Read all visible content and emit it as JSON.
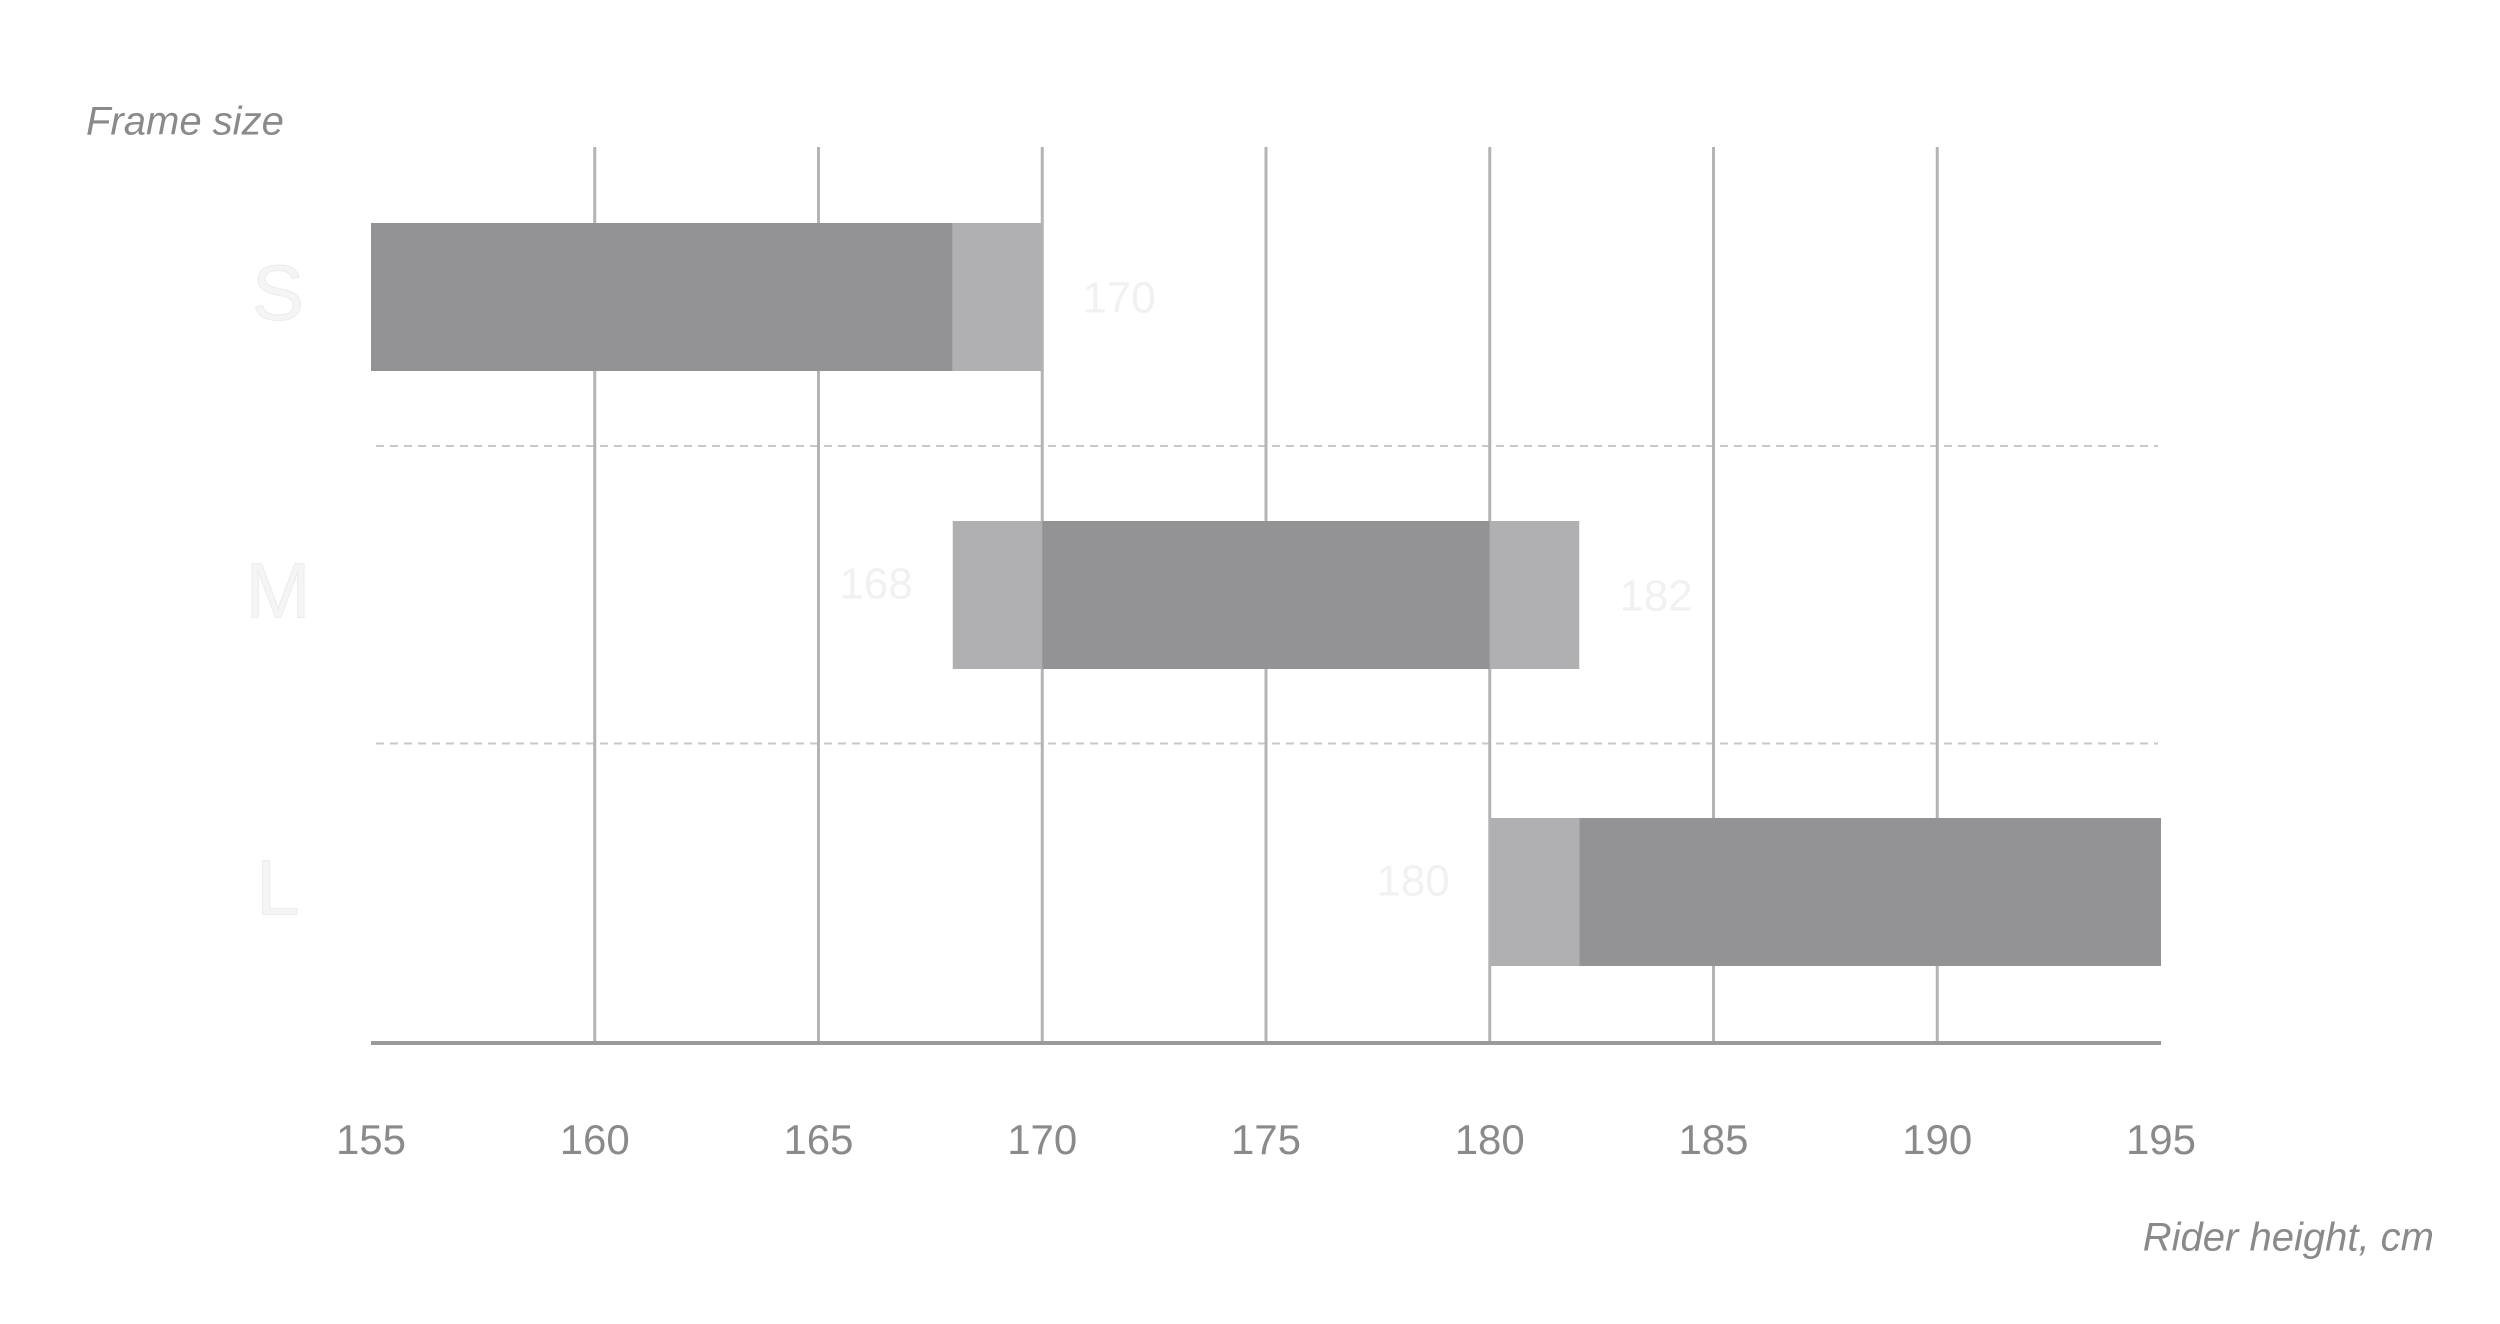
{
  "chart_data": {
    "type": "range_bar",
    "y_label": "Frame size",
    "x_label": "Rider height, cm",
    "categories": [
      "S",
      "M",
      "L"
    ],
    "low": [
      155,
      168,
      180
    ],
    "core_low": [
      155,
      170,
      182
    ],
    "core_high": [
      168,
      180,
      195
    ],
    "high": [
      170,
      182,
      195
    ],
    "show_low_label": [
      false,
      true,
      true
    ],
    "show_high_label": [
      true,
      true,
      false
    ],
    "core_color": "#939396",
    "overlap_color": "#b0b0b2",
    "xlim": [
      155,
      195
    ],
    "xticks": [
      155,
      160,
      165,
      170,
      175,
      180,
      185,
      190,
      195
    ],
    "grid": true
  }
}
